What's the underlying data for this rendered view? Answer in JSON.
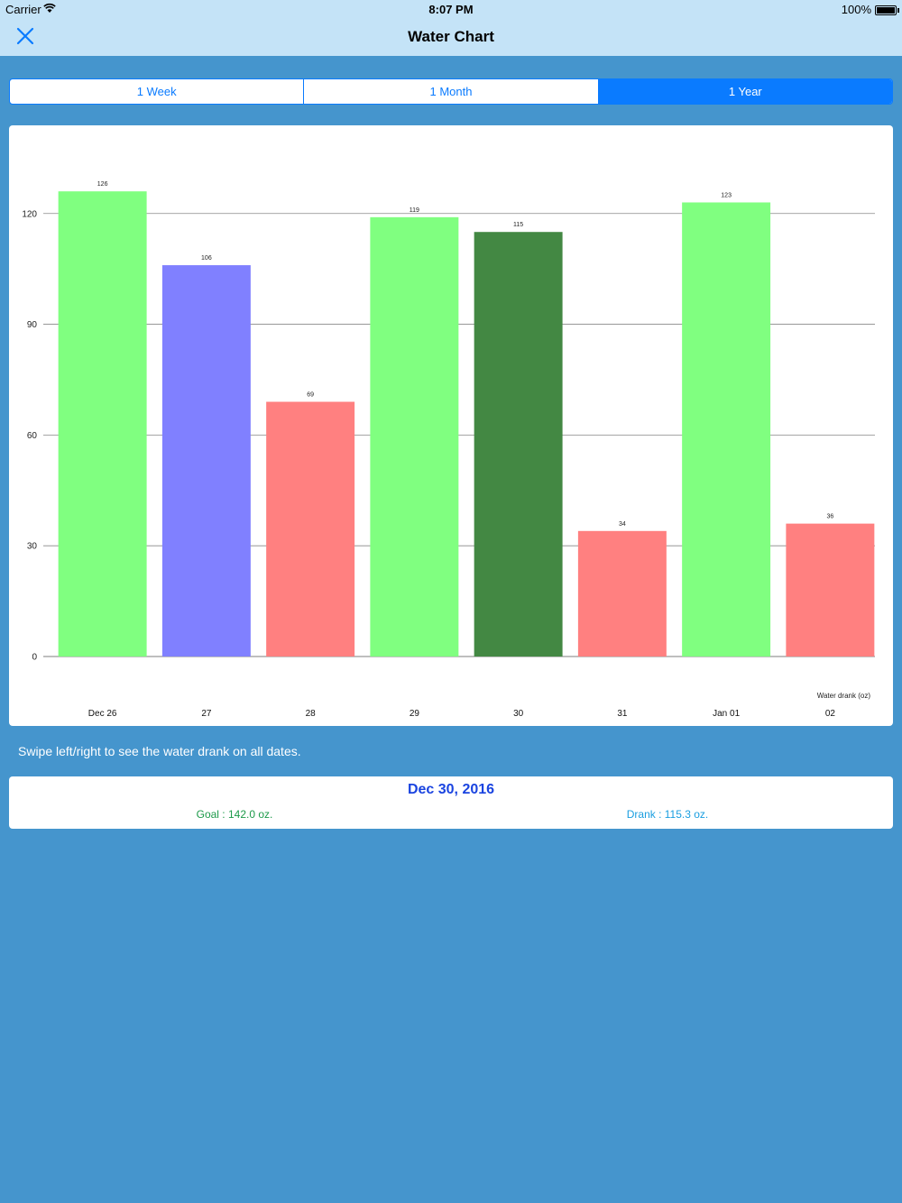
{
  "status_bar": {
    "carrier": "Carrier",
    "time": "8:07 PM",
    "battery": "100%"
  },
  "nav": {
    "title": "Water Chart",
    "close_icon": "close-icon"
  },
  "segments": [
    {
      "label": "1 Week",
      "selected": false
    },
    {
      "label": "1 Month",
      "selected": false
    },
    {
      "label": "1 Year",
      "selected": true
    }
  ],
  "chart_data": {
    "type": "bar",
    "categories": [
      "Dec 26",
      "27",
      "28",
      "29",
      "30",
      "31",
      "Jan 01",
      "02"
    ],
    "values": [
      126,
      106,
      69,
      119,
      115,
      34,
      123,
      36
    ],
    "value_labels": [
      "126",
      "106",
      "69",
      "119",
      "115",
      "34",
      "123",
      "36"
    ],
    "colors": [
      "#80ff80",
      "#8080ff",
      "#ff8080",
      "#80ff80",
      "#438843",
      "#ff8080",
      "#80ff80",
      "#ff8080"
    ],
    "yticks": [
      0,
      30,
      60,
      90,
      120
    ],
    "ylim": [
      0,
      128
    ],
    "ylabel": "Water drank (oz)",
    "grid": true
  },
  "hint": "Swipe left/right to see the water drank on all dates.",
  "summary": {
    "date": "Dec 30, 2016",
    "goal": "Goal : 142.0 oz.",
    "drank": "Drank : 115.3 oz."
  },
  "colors": {
    "background": "#4595cd",
    "nav": "#c4e3f7",
    "accent": "#0a7bff",
    "goal": "#1d9a4a",
    "drank": "#1a9ee0",
    "date": "#1a44e0"
  }
}
